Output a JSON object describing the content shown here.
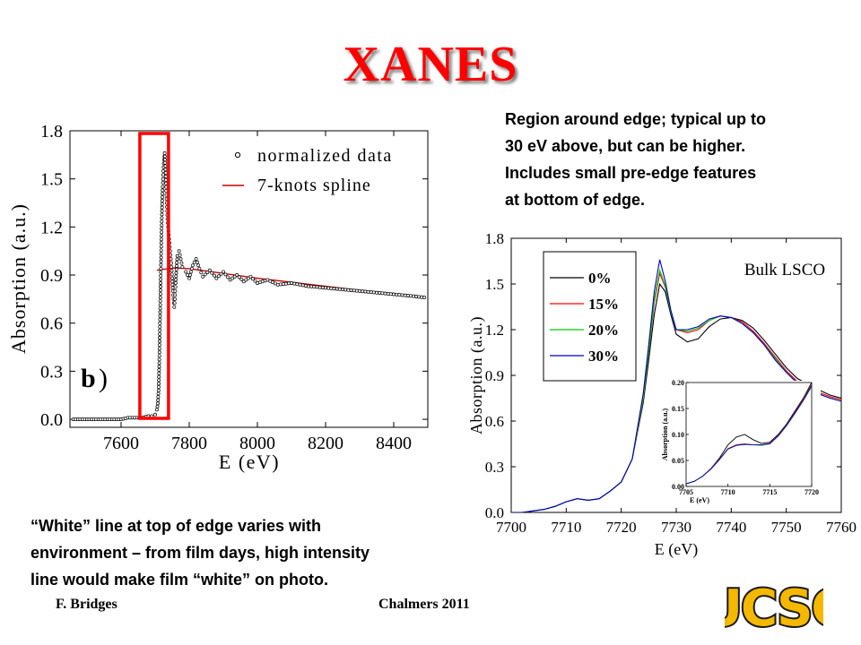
{
  "slide": {
    "title": "XANES",
    "note_right": [
      "Region around edge; typical up to",
      "30 eV above, but can be higher.",
      "Includes small pre-edge features",
      "at bottom of edge."
    ],
    "note_bottom": [
      "“White” line at top of edge varies with",
      "environment – from film days,  high intensity",
      "line would make film “white” on photo."
    ],
    "footer_left": "F. Bridges",
    "footer_right": "Chalmers 2011",
    "logo_text": "UCSC"
  },
  "colors": {
    "title": "#ff0000",
    "highlight_box": "#ff0000",
    "spline": "#cc0000",
    "logo_fill": "#f5b800",
    "logo_outline": "#1a1a1a"
  },
  "chart_data": [
    {
      "type": "scatter",
      "panel_label": "b)",
      "xlabel": "E (eV)",
      "ylabel": "Absorption (a.u.)",
      "xlim": [
        7450,
        8500
      ],
      "ylim": [
        -0.05,
        1.8
      ],
      "xticks": [
        7600,
        7800,
        8000,
        8200,
        8400
      ],
      "yticks": [
        0.0,
        0.3,
        0.6,
        0.9,
        1.2,
        1.5,
        1.8
      ],
      "ytick_labels": [
        "0.0",
        "0.3",
        "0.6",
        "0.9",
        "1.2",
        "1.5",
        "1.8"
      ],
      "series": [
        {
          "name": "normalized data",
          "style": "open-circle markers",
          "x": [
            7460,
            7480,
            7500,
            7520,
            7540,
            7560,
            7580,
            7600,
            7620,
            7640,
            7660,
            7680,
            7690,
            7700,
            7705,
            7708,
            7710,
            7712,
            7714,
            7716,
            7718,
            7720,
            7722,
            7724,
            7726,
            7728,
            7730,
            7732,
            7734,
            7736,
            7738,
            7740,
            7742,
            7744,
            7746,
            7748,
            7750,
            7752,
            7754,
            7756,
            7758,
            7760,
            7765,
            7770,
            7775,
            7780,
            7790,
            7800,
            7810,
            7820,
            7830,
            7840,
            7860,
            7880,
            7900,
            7920,
            7940,
            7960,
            7980,
            8000,
            8030,
            8060,
            8100,
            8150,
            8200,
            8250,
            8300,
            8350,
            8400,
            8450,
            8490
          ],
          "y": [
            0.0,
            0.0,
            0.0,
            0.0,
            0.0,
            0.0,
            0.0,
            0.0,
            0.01,
            0.01,
            0.01,
            0.02,
            0.02,
            0.03,
            0.06,
            0.1,
            0.18,
            0.35,
            0.6,
            0.85,
            1.1,
            1.3,
            1.45,
            1.55,
            1.62,
            1.66,
            1.58,
            1.45,
            1.35,
            1.25,
            1.2,
            1.15,
            1.1,
            1.05,
            1.0,
            0.95,
            0.88,
            0.8,
            0.75,
            0.7,
            0.75,
            0.85,
            1.02,
            1.05,
            1.0,
            0.95,
            0.92,
            0.88,
            0.96,
            1.0,
            0.94,
            0.89,
            0.93,
            0.88,
            0.92,
            0.87,
            0.9,
            0.86,
            0.89,
            0.85,
            0.87,
            0.84,
            0.85,
            0.83,
            0.82,
            0.81,
            0.8,
            0.79,
            0.78,
            0.77,
            0.76
          ]
        },
        {
          "name": "7-knots spline",
          "style": "solid line",
          "x": [
            7705,
            7720,
            7740,
            7760,
            7800,
            7850,
            7900,
            8000,
            8100,
            8200,
            8300,
            8400,
            8490
          ],
          "y": [
            0.93,
            0.935,
            0.94,
            0.945,
            0.94,
            0.925,
            0.91,
            0.88,
            0.855,
            0.83,
            0.805,
            0.785,
            0.765
          ]
        }
      ],
      "annotation": "red rectangle highlighting the edge region (~7700-7760 eV)",
      "legend": "top-right"
    },
    {
      "type": "line",
      "title": "Bulk LSCO",
      "xlabel": "E (eV)",
      "ylabel": "Absorption (a.u.)",
      "xlim": [
        7700,
        7760
      ],
      "ylim": [
        0.0,
        1.8
      ],
      "xticks": [
        7700,
        7710,
        7720,
        7730,
        7740,
        7750,
        7760
      ],
      "yticks": [
        0.0,
        0.3,
        0.6,
        0.9,
        1.2,
        1.5,
        1.8
      ],
      "ytick_labels": [
        "0.0",
        "0.3",
        "0.6",
        "0.9",
        "1.2",
        "1.5",
        "1.8"
      ],
      "x": [
        7700,
        7702,
        7704,
        7706,
        7708,
        7710,
        7712,
        7714,
        7716,
        7718,
        7720,
        7722,
        7724,
        7725,
        7726,
        7727,
        7728,
        7729,
        7730,
        7732,
        7734,
        7736,
        7738,
        7740,
        7742,
        7744,
        7746,
        7748,
        7750,
        7752,
        7755,
        7758,
        7760
      ],
      "series": [
        {
          "name": "0%",
          "color": "#000000",
          "values": [
            0.0,
            0.0,
            0.01,
            0.02,
            0.04,
            0.07,
            0.09,
            0.08,
            0.09,
            0.14,
            0.2,
            0.35,
            0.72,
            1.0,
            1.3,
            1.5,
            1.45,
            1.3,
            1.17,
            1.12,
            1.14,
            1.22,
            1.27,
            1.28,
            1.26,
            1.21,
            1.13,
            1.04,
            0.95,
            0.88,
            0.82,
            0.77,
            0.75
          ]
        },
        {
          "name": "15%",
          "color": "#ff0000",
          "values": [
            0.0,
            0.0,
            0.01,
            0.02,
            0.04,
            0.07,
            0.09,
            0.08,
            0.09,
            0.14,
            0.2,
            0.35,
            0.74,
            1.05,
            1.38,
            1.57,
            1.48,
            1.32,
            1.2,
            1.18,
            1.2,
            1.26,
            1.29,
            1.28,
            1.25,
            1.19,
            1.11,
            1.02,
            0.93,
            0.86,
            0.8,
            0.76,
            0.74
          ]
        },
        {
          "name": "20%",
          "color": "#00cc00",
          "values": [
            0.0,
            0.0,
            0.01,
            0.02,
            0.04,
            0.07,
            0.09,
            0.08,
            0.09,
            0.14,
            0.2,
            0.35,
            0.75,
            1.06,
            1.4,
            1.59,
            1.49,
            1.32,
            1.2,
            1.19,
            1.21,
            1.26,
            1.29,
            1.28,
            1.24,
            1.18,
            1.1,
            1.01,
            0.92,
            0.85,
            0.79,
            0.75,
            0.73
          ]
        },
        {
          "name": "30%",
          "color": "#0000cc",
          "values": [
            0.0,
            0.0,
            0.01,
            0.02,
            0.04,
            0.07,
            0.09,
            0.08,
            0.09,
            0.14,
            0.2,
            0.35,
            0.78,
            1.1,
            1.45,
            1.66,
            1.52,
            1.33,
            1.2,
            1.2,
            1.22,
            1.27,
            1.29,
            1.28,
            1.24,
            1.18,
            1.1,
            1.0,
            0.92,
            0.85,
            0.79,
            0.75,
            0.73
          ]
        }
      ],
      "legend": "top-left",
      "inset": {
        "type": "line",
        "xlabel": "E (eV)",
        "ylabel": "Absorption (a.u.)",
        "xlim": [
          7705,
          7720
        ],
        "ylim": [
          0.0,
          0.2
        ],
        "xticks": [
          7705,
          7710,
          7715,
          7720
        ],
        "yticks": [
          0.0,
          0.05,
          0.1,
          0.15,
          0.2
        ],
        "ytick_labels": [
          "0.00",
          "0.05",
          "0.10",
          "0.15",
          "0.20"
        ],
        "x": [
          7705,
          7706,
          7707,
          7708,
          7709,
          7710,
          7711,
          7712,
          7713,
          7714,
          7715,
          7716,
          7717,
          7718,
          7719,
          7720
        ],
        "series": [
          {
            "name": "0%",
            "color": "#000000",
            "values": [
              0.005,
              0.01,
              0.02,
              0.035,
              0.055,
              0.08,
              0.095,
              0.1,
              0.09,
              0.083,
              0.085,
              0.1,
              0.12,
              0.145,
              0.17,
              0.2
            ]
          },
          {
            "name": "15%",
            "color": "#ff0000",
            "values": [
              0.005,
              0.01,
              0.02,
              0.035,
              0.053,
              0.073,
              0.08,
              0.082,
              0.08,
              0.08,
              0.083,
              0.098,
              0.118,
              0.142,
              0.168,
              0.196
            ]
          },
          {
            "name": "20%",
            "color": "#00cc00",
            "values": [
              0.005,
              0.01,
              0.02,
              0.034,
              0.052,
              0.072,
              0.079,
              0.081,
              0.08,
              0.079,
              0.082,
              0.097,
              0.117,
              0.14,
              0.165,
              0.192
            ]
          },
          {
            "name": "30%",
            "color": "#0000cc",
            "values": [
              0.005,
              0.01,
              0.02,
              0.034,
              0.052,
              0.072,
              0.079,
              0.081,
              0.08,
              0.08,
              0.082,
              0.097,
              0.117,
              0.141,
              0.166,
              0.194
            ]
          }
        ]
      }
    }
  ]
}
